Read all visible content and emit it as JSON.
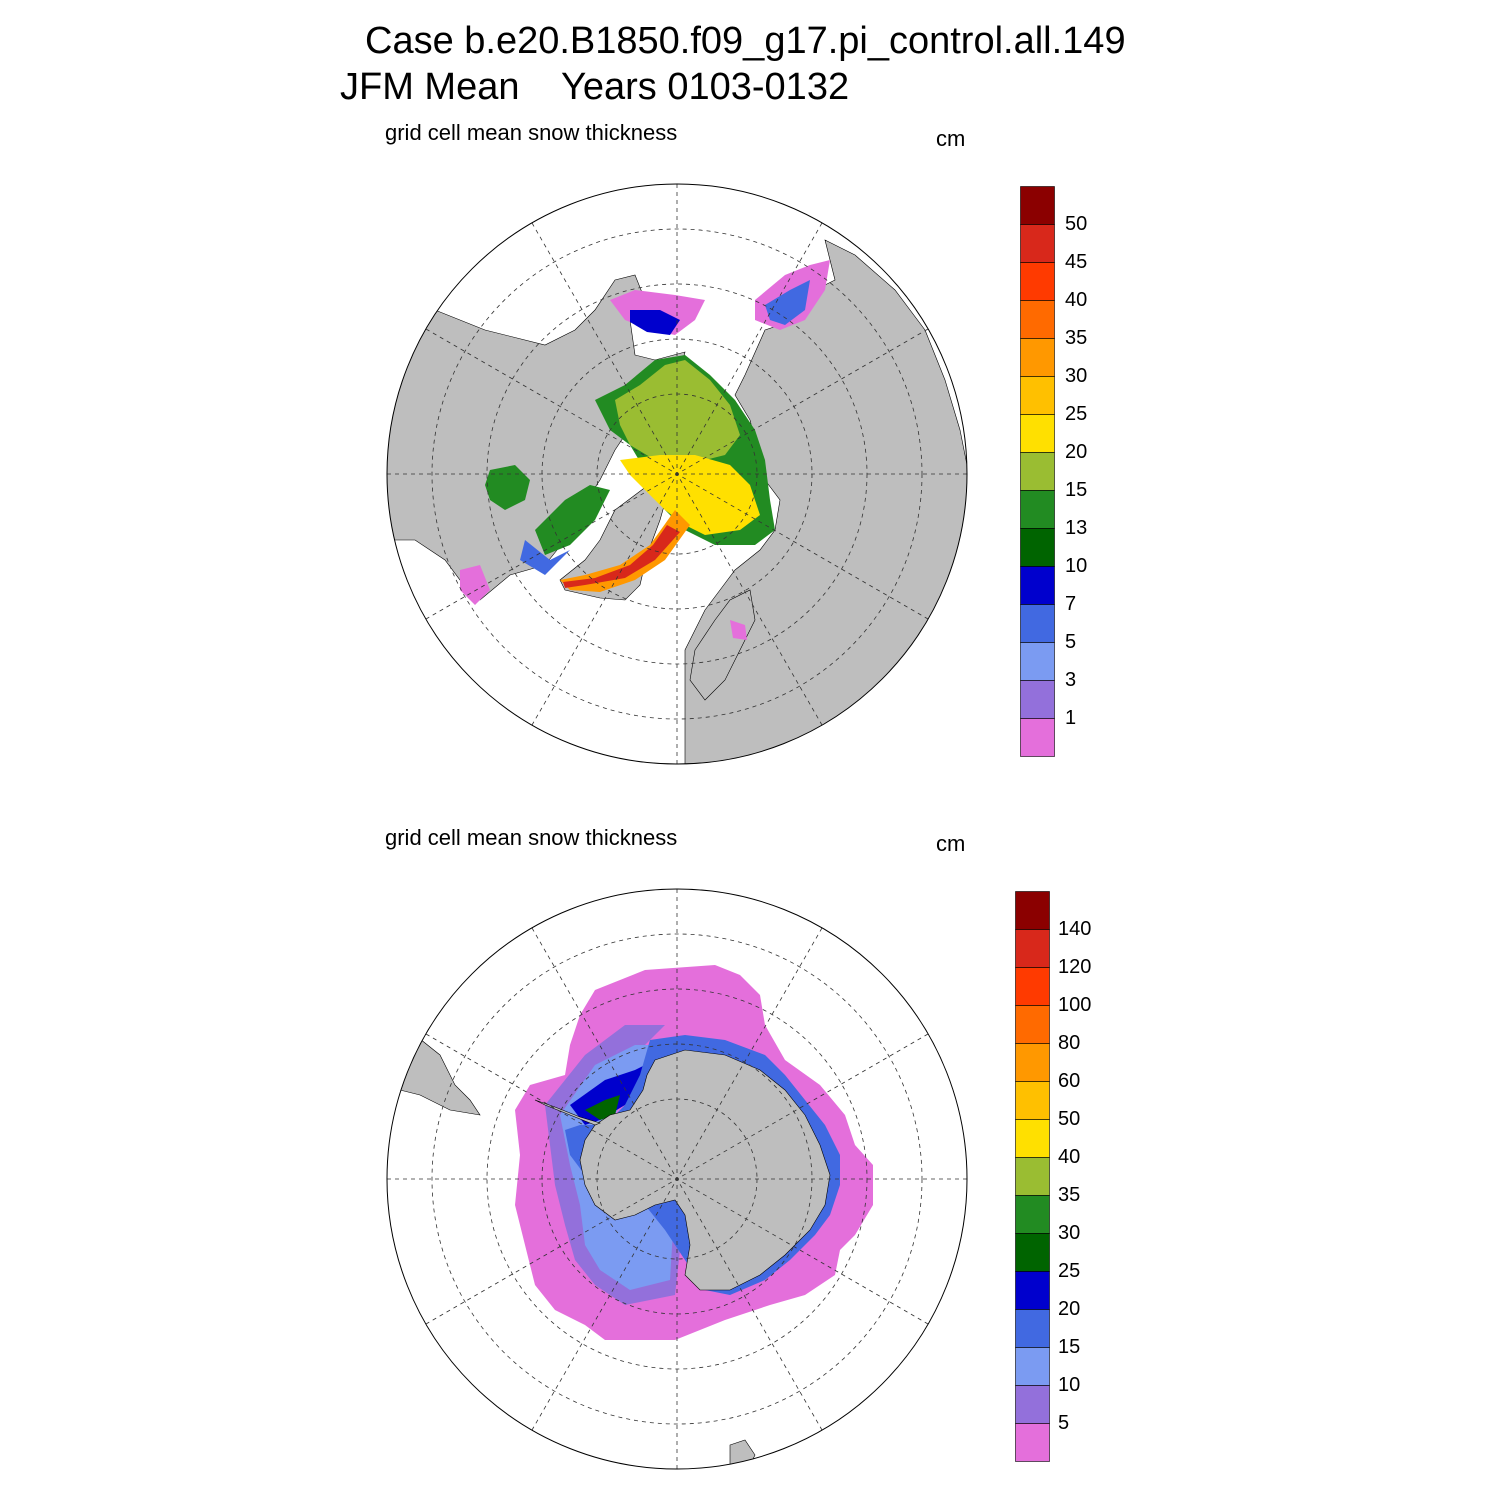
{
  "header": {
    "case_line": "Case b.e20.B1850.f09_g17.pi_control.all.149",
    "period_line": "JFM Mean    Years 0103-0132"
  },
  "panels": [
    {
      "hemisphere": "north",
      "title": "grid cell mean snow thickness",
      "units": "cm",
      "colorbar": {
        "labels": [
          "50",
          "45",
          "40",
          "35",
          "30",
          "25",
          "20",
          "15",
          "13",
          "10",
          "7",
          "5",
          "3",
          "1"
        ],
        "colors": [
          "#8b0000",
          "#d8281b",
          "#ff3a00",
          "#ff6a00",
          "#ff9800",
          "#ffc000",
          "#ffe000",
          "#9abd32",
          "#228b22",
          "#006400",
          "#0000cd",
          "#4169e1",
          "#7b9bf2",
          "#9370db",
          "#e46fdb"
        ]
      }
    },
    {
      "hemisphere": "south",
      "title": "grid cell mean snow thickness",
      "units": "cm",
      "colorbar": {
        "labels": [
          "140",
          "120",
          "100",
          "80",
          "60",
          "50",
          "40",
          "35",
          "30",
          "25",
          "20",
          "15",
          "10",
          "5"
        ],
        "colors": [
          "#8b0000",
          "#d8281b",
          "#ff3a00",
          "#ff6a00",
          "#ff9800",
          "#ffc000",
          "#ffe000",
          "#9abd32",
          "#228b22",
          "#006400",
          "#0000cd",
          "#4169e1",
          "#7b9bf2",
          "#9370db",
          "#e46fdb"
        ]
      }
    }
  ],
  "style": {
    "land": "#bebebe",
    "ocean": "#ffffff",
    "grid": "#333333"
  }
}
